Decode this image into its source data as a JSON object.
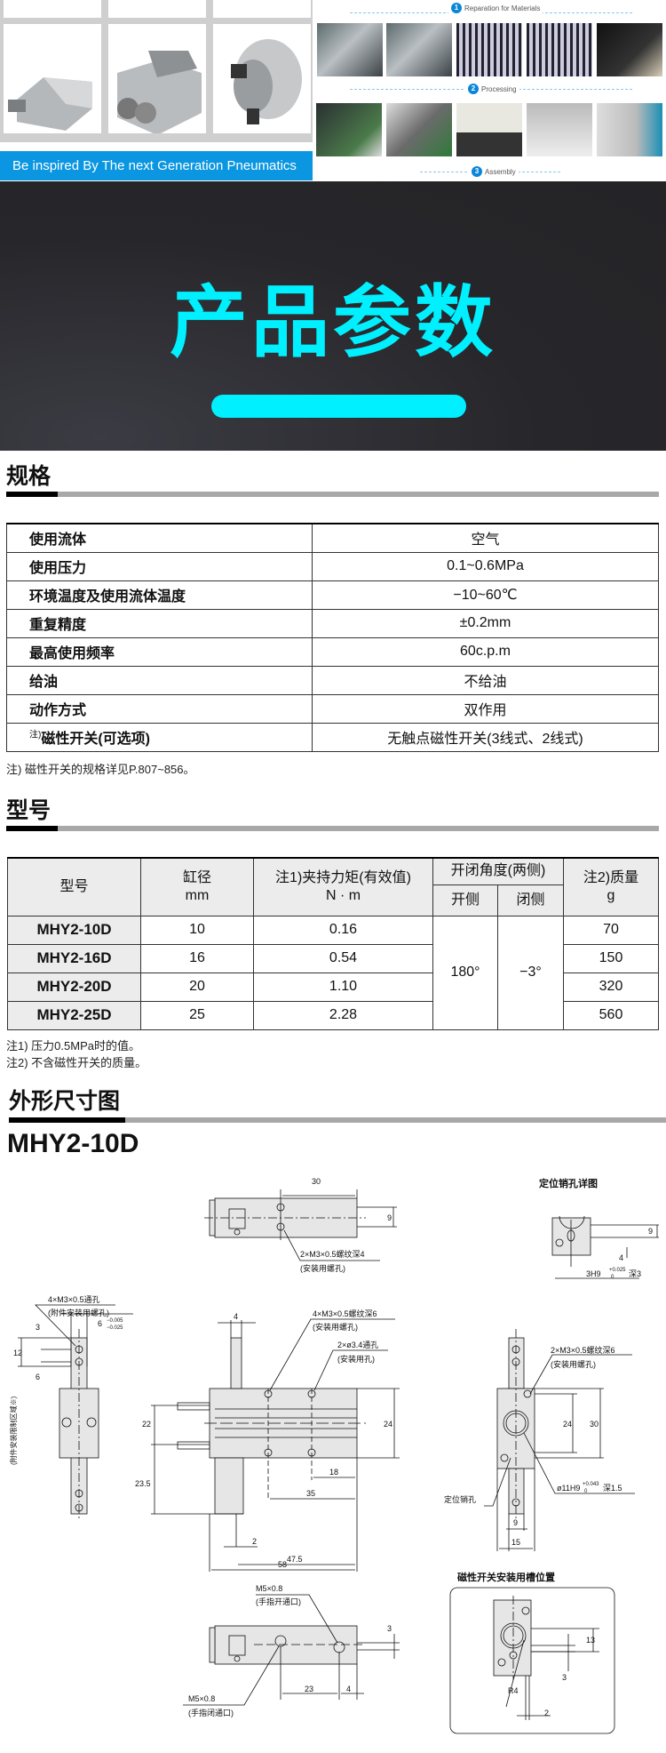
{
  "top": {
    "banner_text": "Be inspired By The next Generation Pneumatics",
    "steps": [
      {
        "num": "1",
        "label": "Reparation for Materials"
      },
      {
        "num": "2",
        "label": "Processing"
      },
      {
        "num": "3",
        "label": "Assembly"
      }
    ]
  },
  "hero": {
    "title": "产品参数",
    "accent_color": "#00f0ff"
  },
  "spec": {
    "heading": "规格",
    "rows": [
      {
        "label": "使用流体",
        "value": "空气"
      },
      {
        "label": "使用压力",
        "value": "0.1~0.6MPa"
      },
      {
        "label": "环境温度及使用流体温度",
        "value": "−10~60℃"
      },
      {
        "label": "重复精度",
        "value": "±0.2mm"
      },
      {
        "label": "最高使用频率",
        "value": "60c.p.m"
      },
      {
        "label": "给油",
        "value": "不给油"
      },
      {
        "label": "动作方式",
        "value": "双作用"
      },
      {
        "label_note": "注)",
        "label": "磁性开关(可选项)",
        "value": "无触点磁性开关(3线式、2线式)"
      }
    ],
    "note": "注) 磁性开关的规格详见P.807~856。"
  },
  "models": {
    "heading": "型号",
    "headers": {
      "model": "型号",
      "bore": "缸径",
      "bore_unit": "mm",
      "torque": "注1)夹持力矩(有效值)",
      "torque_unit": "N · m",
      "angle": "开闭角度(两侧)",
      "open": "开侧",
      "close": "闭侧",
      "mass": "注2)质量",
      "mass_unit": "g"
    },
    "rows": [
      {
        "model": "MHY2-10D",
        "bore": "10",
        "torque": "0.16",
        "mass": "70"
      },
      {
        "model": "MHY2-16D",
        "bore": "16",
        "torque": "0.54",
        "mass": "150"
      },
      {
        "model": "MHY2-20D",
        "bore": "20",
        "torque": "1.10",
        "mass": "320"
      },
      {
        "model": "MHY2-25D",
        "bore": "25",
        "torque": "2.28",
        "mass": "560"
      }
    ],
    "open_angle": "180°",
    "close_angle": "−3°",
    "notes": [
      "注1) 压力0.5MPa时的值。",
      "注2) 不含磁性开关的质量。"
    ]
  },
  "drawing": {
    "heading": "外形尺寸图",
    "model": "MHY2-10D",
    "labels": {
      "pin_detail_title": "定位销孔详图",
      "switch_title": "磁性开关安装用槽位置",
      "top_30": "30",
      "top_9": "9",
      "top_hole": "2×M3×0.5螺纹深4",
      "top_hole_note": "(安装用螺孔)",
      "pin_9": "9",
      "pin_4": "4",
      "pin_hole": "3H9",
      "pin_tol_up": "+0.025",
      "pin_tol_low": "0",
      "pin_depth": "深3",
      "side_hole": "4×M3×0.5通孔",
      "side_hole_note": "(附件安装用螺孔)",
      "side_6": "6",
      "side_tol_up": "−0.005",
      "side_tol_low": "−0.025",
      "side_3": "3",
      "side_12": "12",
      "side_6b": "6",
      "side_restrict": "(附件安装限制区域※)",
      "front_4": "4",
      "front_hole": "4×M3×0.5螺纹深6",
      "front_hole_note": "(安装用螺孔)",
      "front_thru": "2×ø3.4通孔",
      "front_thru_note": "(安装用孔)",
      "front_22": "22",
      "front_24": "24",
      "front_23_5": "23.5",
      "front_18": "18",
      "front_35": "35",
      "front_2": "2",
      "front_47_5": "47.5",
      "front_58": "58",
      "right_hole": "2×M3×0.5螺纹深6",
      "right_hole_note": "(安装用螺孔)",
      "right_24": "24",
      "right_30": "30",
      "right_bore": "ø11H9",
      "right_tol_up": "+0.043",
      "right_tol_low": "0",
      "right_depth": "深1.5",
      "right_pin": "定位销孔",
      "right_9": "9",
      "right_15": "15",
      "bottom_open_port": "M5×0.8",
      "bottom_open_note": "(手指开通口)",
      "bottom_close_port": "M5×0.8",
      "bottom_close_note": "(手指闭通口)",
      "bottom_3": "3",
      "bottom_23": "23",
      "bottom_4": "4",
      "sw_13": "13",
      "sw_3": "3",
      "sw_2": "2",
      "sw_r4": "R4"
    }
  }
}
